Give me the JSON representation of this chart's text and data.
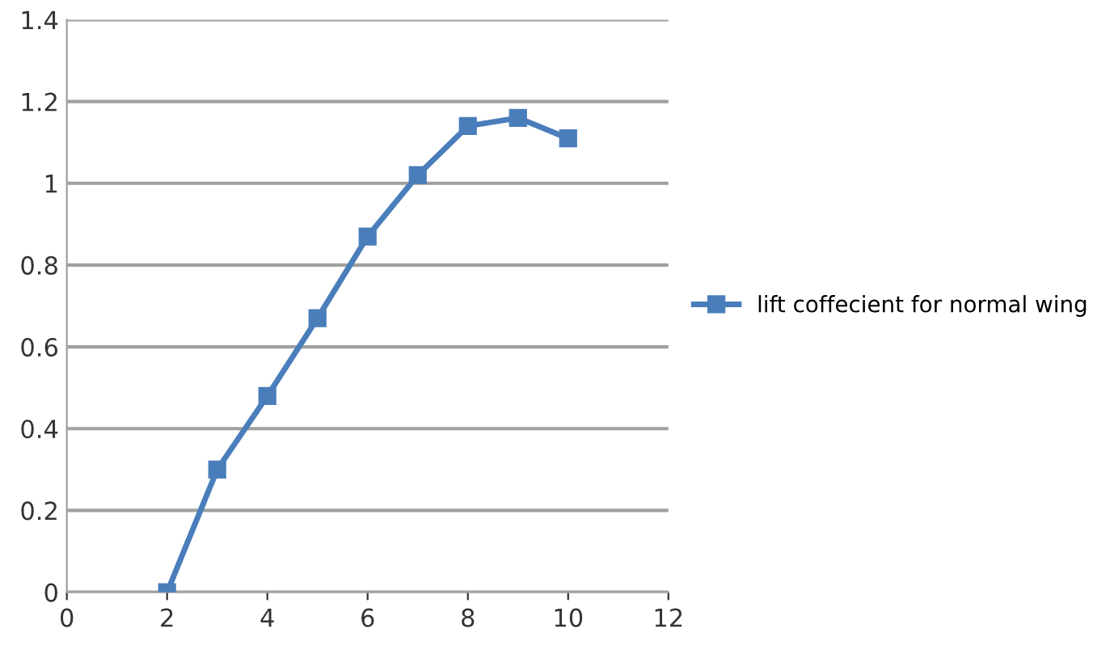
{
  "chart_data": {
    "type": "line",
    "x": [
      2,
      3,
      4,
      5,
      6,
      7,
      8,
      9,
      10
    ],
    "series": [
      {
        "name": "lift coffecient for normal wing",
        "color": "#4a7ebb",
        "values": [
          0,
          0.3,
          0.48,
          0.67,
          0.87,
          1.02,
          1.14,
          1.16,
          1.11
        ]
      }
    ],
    "xlim": [
      0,
      12
    ],
    "xticks": [
      0,
      2,
      4,
      6,
      8,
      10,
      12
    ],
    "ylim": [
      0,
      1.4
    ],
    "yticks": [
      0,
      0.2,
      0.4,
      0.6,
      0.8,
      1,
      1.2,
      1.4
    ],
    "grid": "y",
    "legend": "right",
    "marker": "square",
    "line_style": "solid"
  }
}
